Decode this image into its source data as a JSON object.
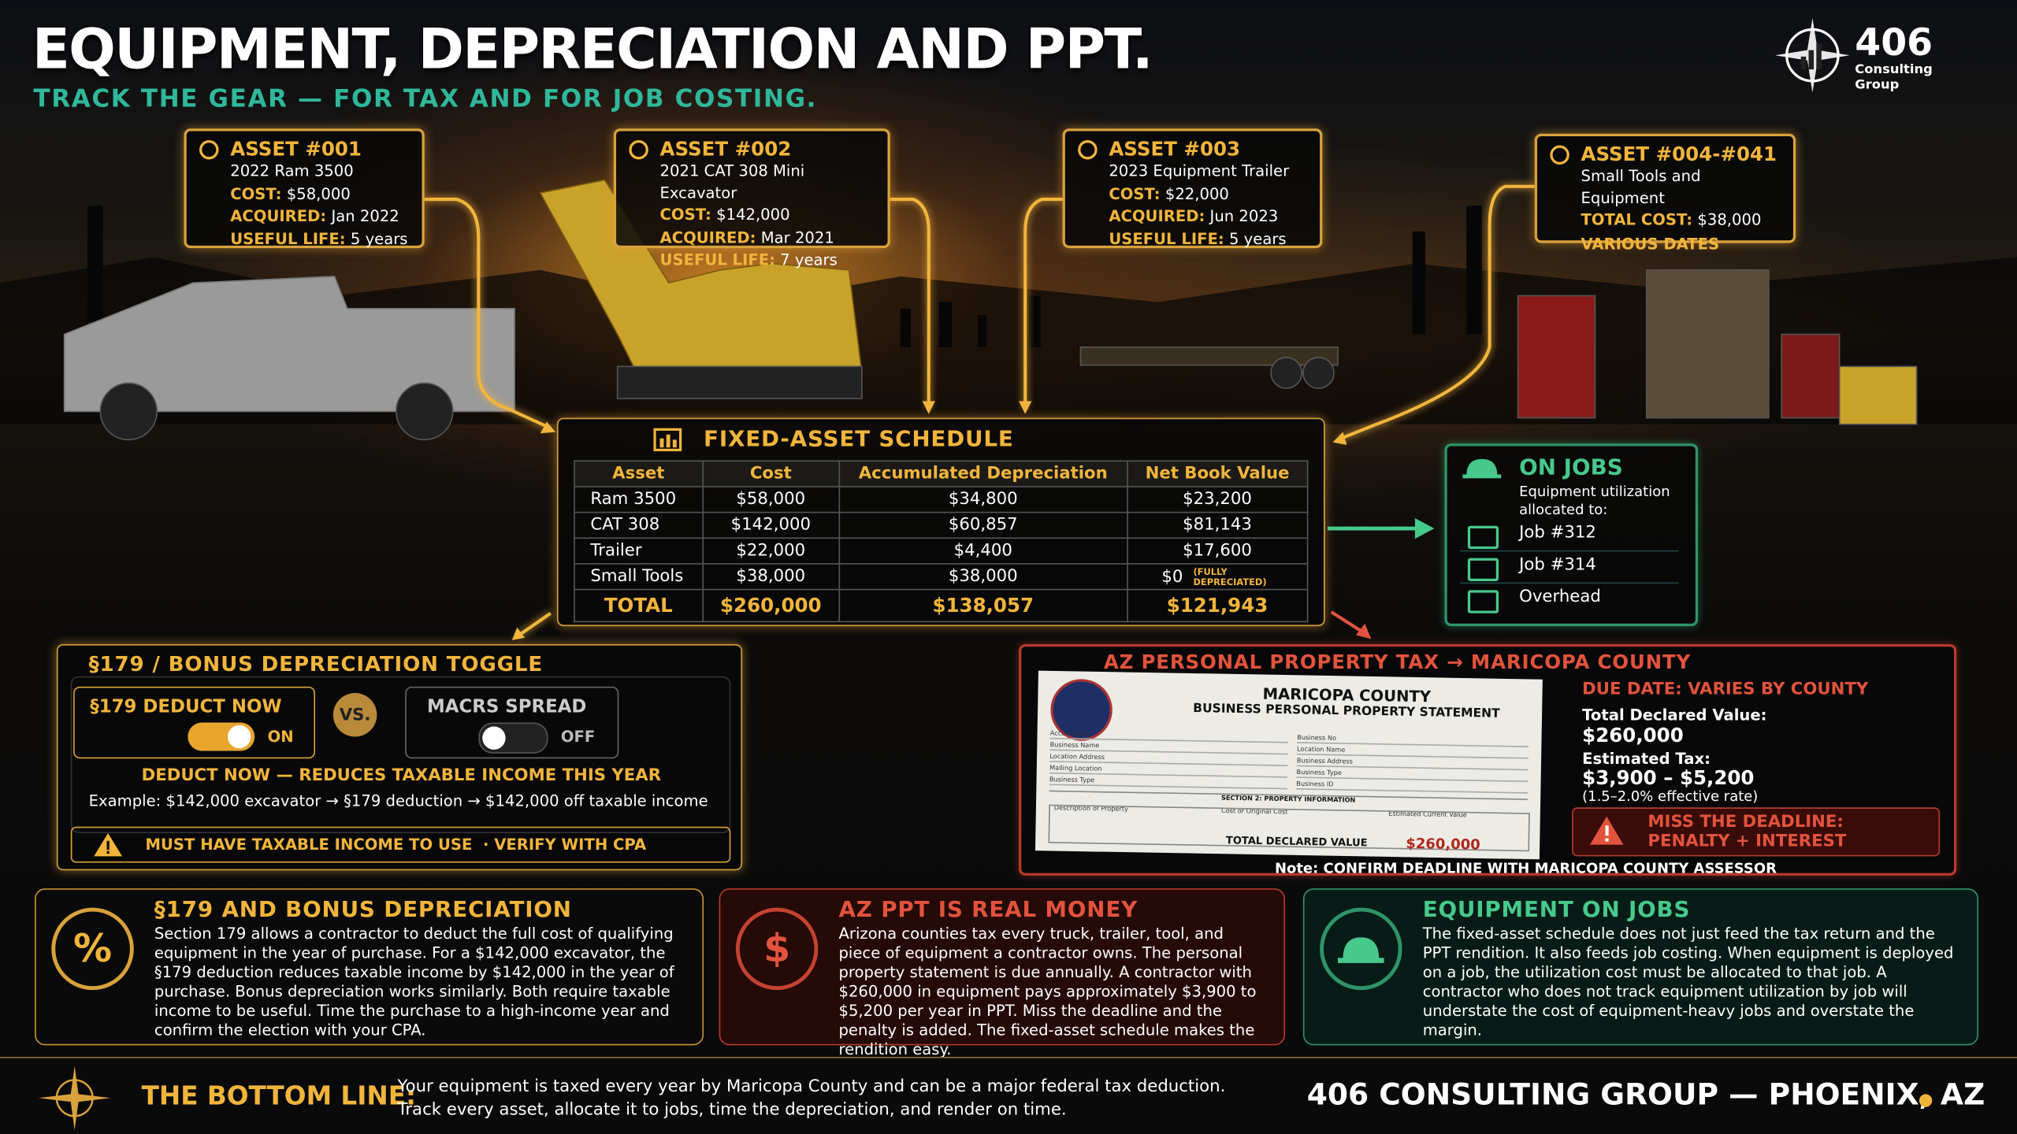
{
  "header": {
    "title": "EQUIPMENT, DEPRECIATION AND PPT.",
    "subtitle": "TRACK THE GEAR — FOR TAX AND FOR JOB COSTING."
  },
  "logo": {
    "name": "406",
    "tagline": "Consulting Group"
  },
  "assets": [
    {
      "id": "ASSET #001",
      "name": "2022 Ram 3500",
      "fields": [
        {
          "label": "COST:",
          "value": "$58,000"
        },
        {
          "label": "ACQUIRED:",
          "value": "Jan 2022"
        },
        {
          "label": "USEFUL LIFE:",
          "value": "5 years"
        }
      ]
    },
    {
      "id": "ASSET #002",
      "name": "2021 CAT 308 Mini Excavator",
      "fields": [
        {
          "label": "COST:",
          "value": "$142,000"
        },
        {
          "label": "ACQUIRED:",
          "value": "Mar 2021"
        },
        {
          "label": "USEFUL LIFE:",
          "value": "7 years"
        }
      ]
    },
    {
      "id": "ASSET #003",
      "name": "2023 Equipment Trailer",
      "fields": [
        {
          "label": "COST:",
          "value": "$22,000"
        },
        {
          "label": "ACQUIRED:",
          "value": "Jun 2023"
        },
        {
          "label": "USEFUL LIFE:",
          "value": "5 years"
        }
      ]
    },
    {
      "id": "ASSET #004-#041",
      "name": "Small Tools and Equipment",
      "fields": [
        {
          "label": "TOTAL COST:",
          "value": "$38,000"
        }
      ],
      "note": "VARIOUS DATES"
    }
  ],
  "schedule": {
    "title": "FIXED-ASSET SCHEDULE",
    "columns": [
      "Asset",
      "Cost",
      "Accumulated Depreciation",
      "Net Book Value"
    ],
    "rows": [
      [
        "Ram 3500",
        "$58,000",
        "$34,800",
        "$23,200"
      ],
      [
        "CAT 308",
        "$142,000",
        "$60,857",
        "$81,143"
      ],
      [
        "Trailer",
        "$22,000",
        "$4,400",
        "$17,600"
      ],
      [
        "Small Tools",
        "$38,000",
        "$38,000",
        "$0"
      ]
    ],
    "row_note": "(FULLY DEPRECIATED)",
    "total": [
      "TOTAL",
      "$260,000",
      "$138,057",
      "$121,943"
    ]
  },
  "jobs": {
    "title": "ON JOBS",
    "subtitle": "Equipment utilization allocated to:",
    "items": [
      "Job #312",
      "Job #314",
      "Overhead"
    ]
  },
  "toggle": {
    "title": "§179 / BONUS DEPRECIATION TOGGLE",
    "options": [
      {
        "label": "§179 DEDUCT NOW",
        "state": "ON"
      },
      {
        "label": "MACRS SPREAD",
        "state": "OFF"
      }
    ],
    "vs": "VS.",
    "headline": "DEDUCT NOW — REDUCES TAXABLE INCOME THIS YEAR",
    "example": "Example: $142,000 excavator → §179 deduction → $142,000 off taxable income",
    "warning": "MUST HAVE TAXABLE INCOME TO USE  · VERIFY WITH CPA"
  },
  "ppt": {
    "title": "AZ PERSONAL PROPERTY TAX → MARICOPA COUNTY",
    "form": {
      "county": "MARICOPA COUNTY",
      "statement": "BUSINESS PERSONAL PROPERTY STATEMENT",
      "fields": [
        "Account No.",
        "Business Name",
        "Location Address",
        "Mailing Location",
        "Business Type",
        "Business No",
        "Location Name",
        "Business Address",
        "Business Type",
        "Business ID"
      ],
      "section": "SECTION 2: PROPERTY INFORMATION",
      "columns": [
        "Description of Property",
        "Cost or Original Cost",
        "Estimated Current Value"
      ],
      "total_label": "TOTAL DECLARED VALUE",
      "total_value": "$260,000"
    },
    "due": "DUE DATE: VARIES BY COUNTY",
    "declared": {
      "label": "Total Declared Value:",
      "value": "$260,000"
    },
    "tax": {
      "label": "Estimated Tax:",
      "value": "$3,900 – $5,200",
      "rate": "(1.5–2.0% effective rate)"
    },
    "warning": [
      "MISS THE DEADLINE:",
      "PENALTY + INTEREST"
    ],
    "note": "Note: CONFIRM DEADLINE WITH MARICOPA COUNTY ASSESSOR"
  },
  "cards": [
    {
      "icon": "%",
      "title": "§179 AND BONUS DEPRECIATION",
      "body": "Section 179 allows a contractor to deduct the full cost of qualifying equipment in the year of purchase. For a $142,000 excavator, the §179 deduction reduces taxable income by $142,000 in the year of purchase. Bonus depreciation works similarly. Both require taxable income to be useful. Time the purchase to a high-income year and confirm the election with your CPA."
    },
    {
      "icon": "$",
      "title": "AZ PPT IS REAL MONEY",
      "body": "Arizona counties tax every truck, trailer, tool, and piece of equipment a contractor owns. The personal property statement is due annually. A contractor with $260,000 in equipment pays approximately $3,900 to $5,200 per year in PPT. Miss the deadline and the penalty is added. The fixed-asset schedule makes the rendition easy."
    },
    {
      "title": "EQUIPMENT ON JOBS",
      "body": "The fixed-asset schedule does not just feed the tax return and the PPT rendition. It also feeds job costing. When equipment is deployed on a job, the utilization cost must be allocated to that job. A contractor who does not track equipment utilization by job will understate the cost of equipment-heavy jobs and overstate the margin."
    }
  ],
  "footer": {
    "label": "THE BOTTOM LINE:",
    "lines": [
      "Your equipment is taxed every year by Maricopa County and can be a major federal tax deduction.",
      "Track every asset, allocate it to jobs, time the depreciation, and render on time."
    ],
    "brand": "406 CONSULTING GROUP — PHOENIX, AZ"
  }
}
